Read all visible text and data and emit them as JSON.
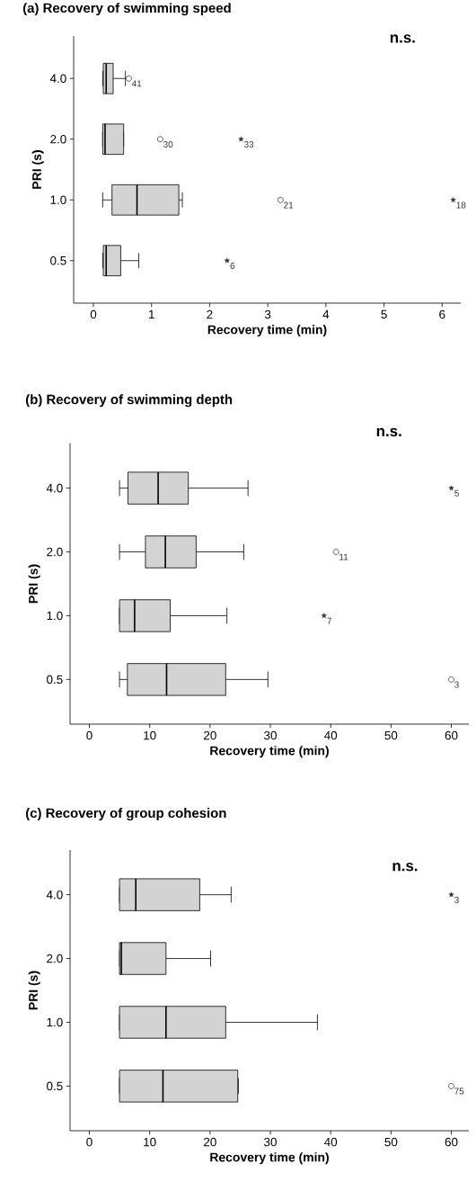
{
  "chart_data": [
    {
      "type": "box",
      "orientation": "horizontal",
      "title": "(a) Recovery of swimming speed",
      "xlabel": "Recovery time (min)",
      "ylabel": "PRI (s)",
      "categories": [
        "4.0",
        "2.0",
        "1.0",
        "0.5"
      ],
      "color": "#d3d3d3",
      "xlim": [
        -0.34,
        6.32
      ],
      "xticks": [
        0,
        1,
        2,
        3,
        4,
        5,
        6
      ],
      "boxes": [
        {
          "low": 0.16,
          "q1": 0.17,
          "median": 0.22,
          "q3": 0.34,
          "high": 0.55
        },
        {
          "low": 0.16,
          "q1": 0.16,
          "median": 0.2,
          "q3": 0.52,
          "high": 0.52
        },
        {
          "low": 0.16,
          "q1": 0.32,
          "median": 0.75,
          "q3": 1.47,
          "high": 1.53
        },
        {
          "low": 0.16,
          "q1": 0.17,
          "median": 0.22,
          "q3": 0.47,
          "high": 0.78
        }
      ],
      "series": [
        {
          "type": "scatter",
          "marker": "circle",
          "color": "#333333",
          "x": [
            "4.0",
            "2.0",
            "1.0"
          ],
          "values": [
            0.61,
            1.15,
            3.22
          ]
        },
        {
          "type": "scatter",
          "marker": "star",
          "color": "#333333",
          "x": [
            "2.0",
            "1.0",
            "0.5"
          ],
          "values": [
            2.54,
            6.19,
            2.3
          ]
        }
      ],
      "annotations": [
        "n.s.",
        {
          "text": "41",
          "x": 0.61,
          "y": "4.0"
        },
        {
          "text": "30",
          "x": 1.15,
          "y": "2.0"
        },
        {
          "text": "33",
          "x": 2.54,
          "y": "2.0"
        },
        {
          "text": "21",
          "x": 3.22,
          "y": "1.0"
        },
        {
          "text": "18",
          "x": 6.19,
          "y": "1.0"
        },
        {
          "text": "6",
          "x": 2.3,
          "y": "0.5"
        }
      ]
    },
    {
      "type": "box",
      "orientation": "horizontal",
      "title": "(b) Recovery of swimming depth",
      "xlabel": "Recovery time (min)",
      "ylabel": "PRI (s)",
      "categories": [
        "4.0",
        "2.0",
        "1.0",
        "0.5"
      ],
      "color": "#d3d3d3",
      "xlim": [
        -3.2,
        62.9
      ],
      "xticks": [
        0,
        10,
        20,
        30,
        40,
        50,
        60
      ],
      "boxes": [
        {
          "low": 5,
          "q1": 6.4,
          "median": 11.4,
          "q3": 16.4,
          "high": 26.3
        },
        {
          "low": 5,
          "q1": 9.3,
          "median": 12.6,
          "q3": 17.7,
          "high": 25.6
        },
        {
          "low": 5,
          "q1": 5,
          "median": 7.5,
          "q3": 13.4,
          "high": 22.8
        },
        {
          "low": 5,
          "q1": 6.3,
          "median": 12.8,
          "q3": 22.6,
          "high": 29.6
        }
      ],
      "series": [
        {
          "type": "scatter",
          "marker": "circle",
          "color": "#333333",
          "x": [
            "2.0",
            "0.5"
          ],
          "values": [
            40.9,
            60
          ]
        },
        {
          "type": "scatter",
          "marker": "star",
          "color": "#333333",
          "x": [
            "4.0",
            "1.0"
          ],
          "values": [
            60,
            38.9
          ]
        }
      ],
      "annotations": [
        "n.s.",
        {
          "text": "5",
          "x": 60,
          "y": "4.0"
        },
        {
          "text": "11",
          "x": 40.9,
          "y": "2.0"
        },
        {
          "text": "7",
          "x": 38.9,
          "y": "1.0"
        },
        {
          "text": "3",
          "x": 60,
          "y": "0.5"
        }
      ]
    },
    {
      "type": "box",
      "orientation": "horizontal",
      "title": "(c) Recovery of group cohesion",
      "xlabel": "Recovery time (min)",
      "ylabel": "PRI (s)",
      "categories": [
        "4.0",
        "2.0",
        "1.0",
        "0.5"
      ],
      "color": "#d3d3d3",
      "xlim": [
        -3.2,
        62.9
      ],
      "xticks": [
        0,
        10,
        20,
        30,
        40,
        50,
        60
      ],
      "boxes": [
        {
          "low": 5,
          "q1": 5,
          "median": 7.7,
          "q3": 18.3,
          "high": 23.5
        },
        {
          "low": 5,
          "q1": 5,
          "median": 5.3,
          "q3": 12.7,
          "high": 20.1
        },
        {
          "low": 5,
          "q1": 5,
          "median": 12.7,
          "q3": 22.6,
          "high": 37.8
        },
        {
          "low": 5,
          "q1": 5,
          "median": 12.2,
          "q3": 24.6,
          "high": 24.7
        }
      ],
      "series": [
        {
          "type": "scatter",
          "marker": "circle",
          "color": "#333333",
          "x": [
            "0.5"
          ],
          "values": [
            60
          ]
        },
        {
          "type": "scatter",
          "marker": "star",
          "color": "#333333",
          "x": [
            "4.0"
          ],
          "values": [
            60
          ]
        }
      ],
      "annotations": [
        "n.s.",
        {
          "text": "3",
          "x": 60,
          "y": "4.0"
        },
        {
          "text": "75",
          "x": 60,
          "y": "0.5"
        }
      ]
    }
  ]
}
